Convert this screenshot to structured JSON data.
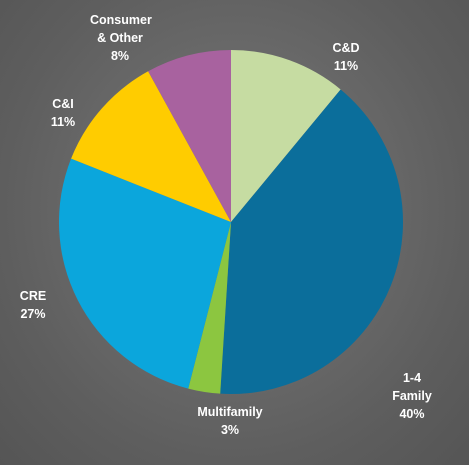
{
  "chart_data": {
    "type": "pie",
    "categories": [
      "C&D",
      "1-4 Family",
      "Multifamily",
      "CRE",
      "C&I",
      "Consumer & Other"
    ],
    "values": [
      11,
      40,
      3,
      27,
      11,
      8
    ],
    "value_labels": [
      "11%",
      "40%",
      "3%",
      "27%",
      "11%",
      "8%"
    ],
    "colors": [
      "#c6dca2",
      "#0b6e9b",
      "#8cc640",
      "#0ba6dc",
      "#ffcc00",
      "#a8629f"
    ]
  }
}
